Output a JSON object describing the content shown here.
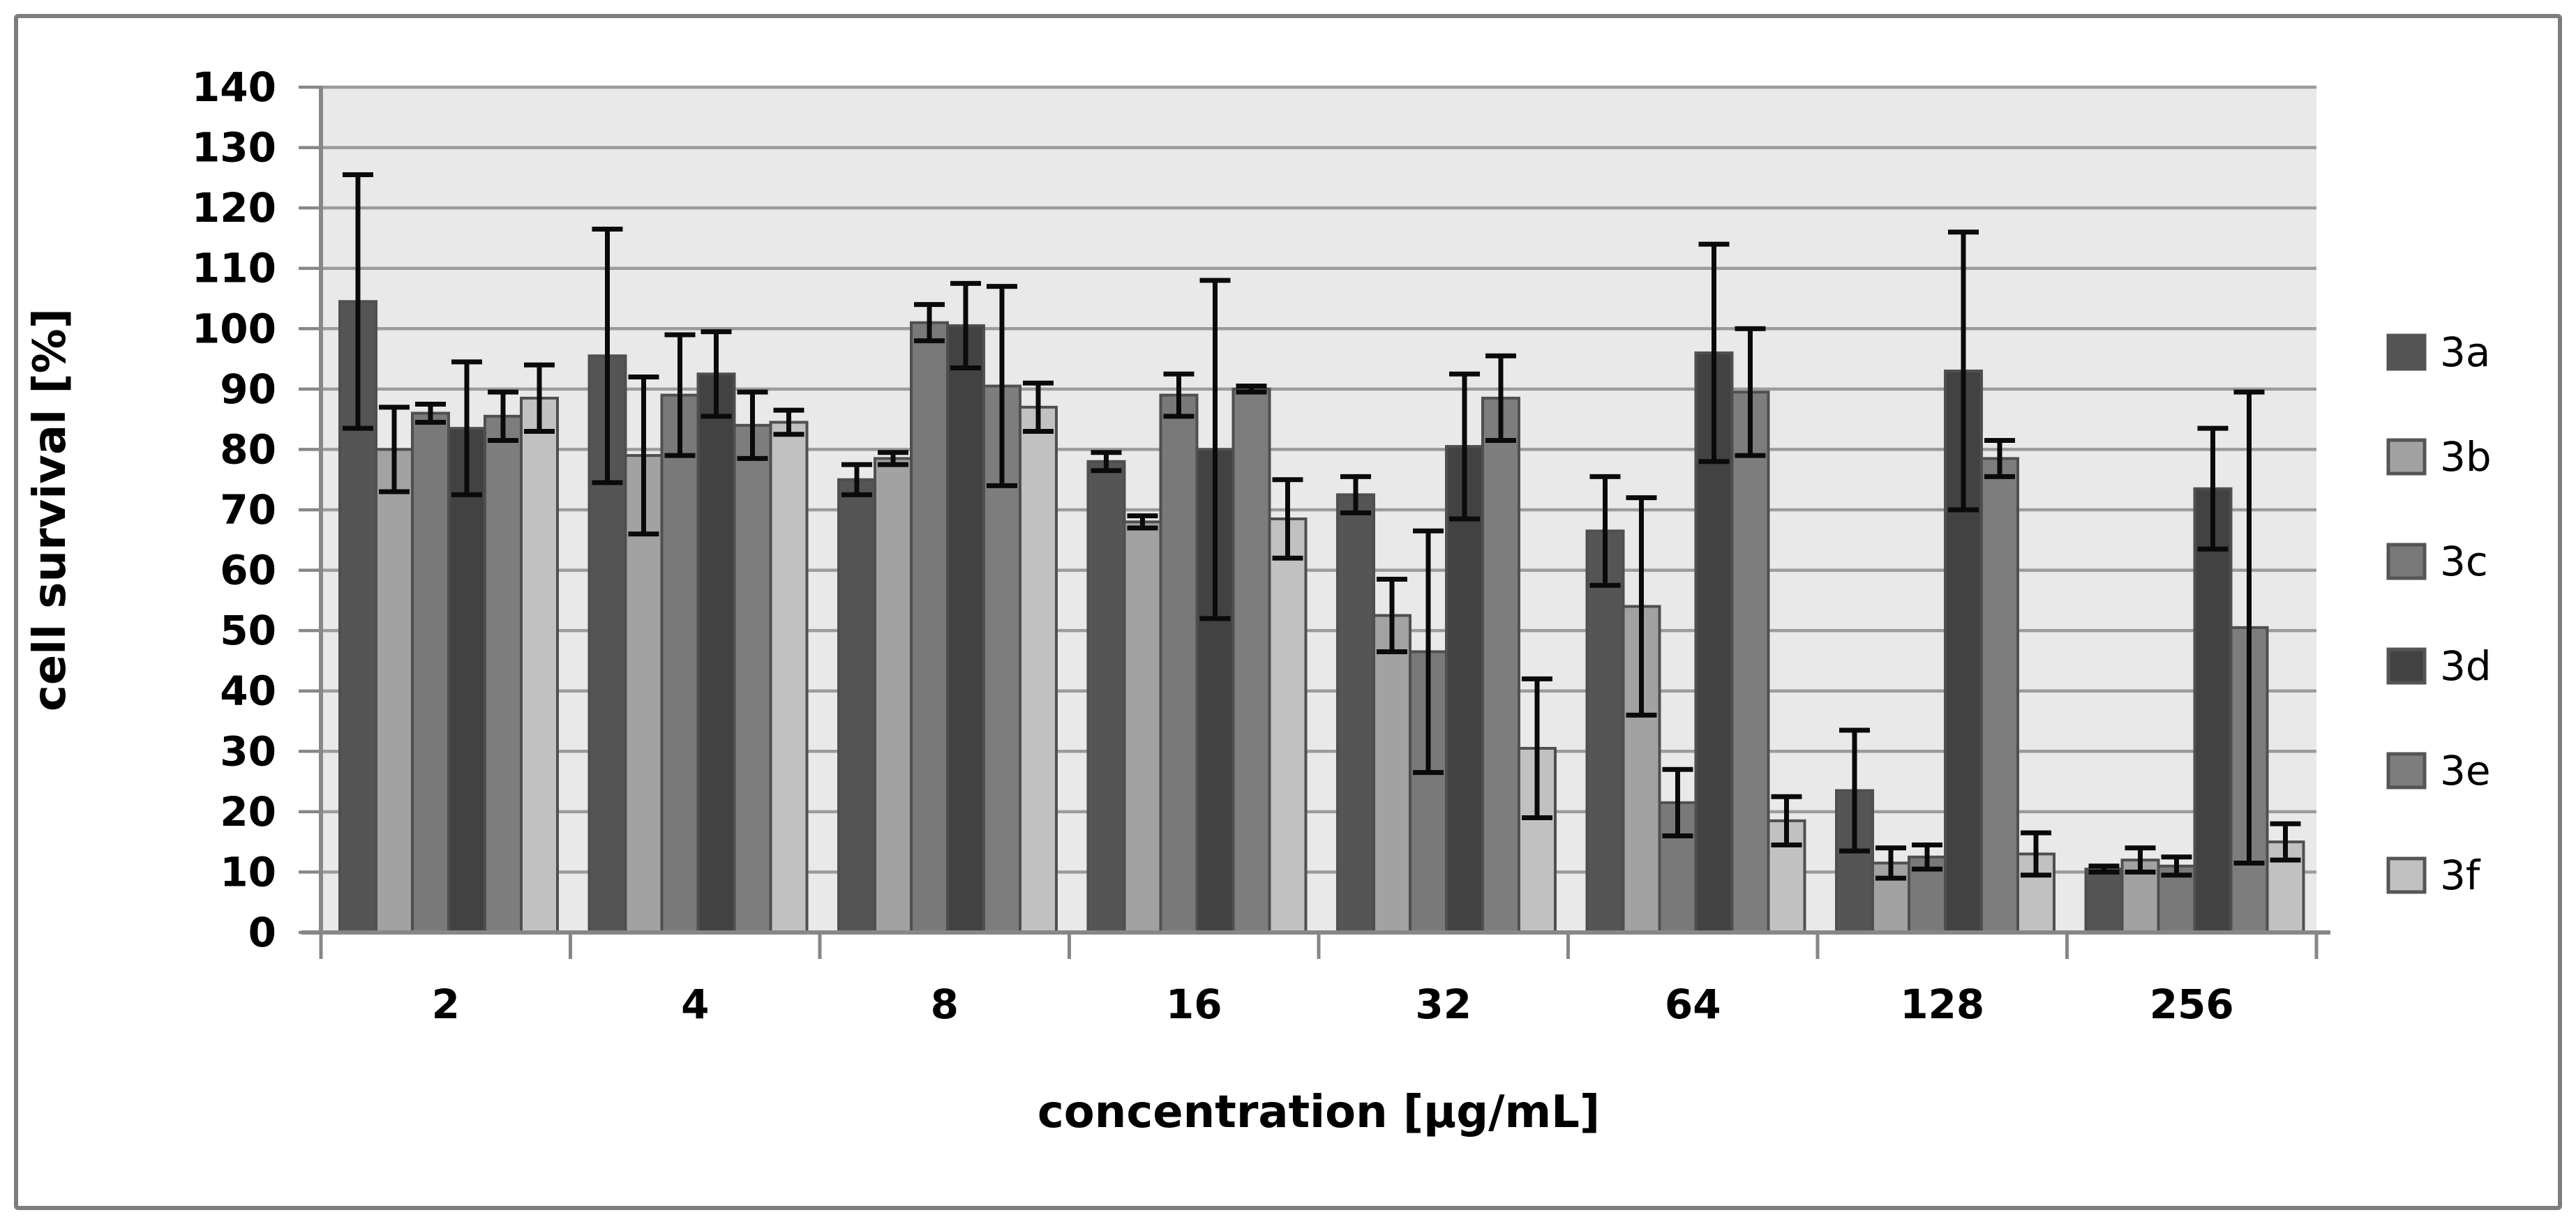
{
  "figure": {
    "x_axis_title": "concentration [μg/mL]",
    "y_axis_title": "cell survival [%]"
  },
  "chart_data": {
    "type": "bar",
    "title": "",
    "xlabel": "concentration [μg/mL]",
    "ylabel": "cell survival [%]",
    "ylim": [
      0,
      140
    ],
    "ytick_step": 10,
    "yticks": [
      0,
      10,
      20,
      30,
      40,
      50,
      60,
      70,
      80,
      90,
      100,
      110,
      120,
      130,
      140
    ],
    "ytick_labels": [
      "0",
      "10",
      "20",
      "30",
      "40",
      "50",
      "60",
      "70",
      "80",
      "90",
      "100",
      "110",
      "120",
      "130",
      "140"
    ],
    "categories": [
      "2",
      "4",
      "8",
      "16",
      "32",
      "64",
      "128",
      "256"
    ],
    "grid": true,
    "legend_position": "right",
    "plot_bg_color": "#E9E9E9",
    "gridline_color": "#9B9B9B",
    "axis_color": "#878787",
    "error_bar_color": "#0A0A0A",
    "bar_border_color": "#4F4F4F",
    "series": [
      {
        "name": "3a",
        "color": "#555555",
        "values": [
          104.5,
          95.5,
          75,
          78,
          72.5,
          66.5,
          23.5,
          10.5
        ],
        "errors": [
          21,
          21,
          2.5,
          1.5,
          3,
          9,
          10,
          0.5
        ]
      },
      {
        "name": "3b",
        "color": "#A2A2A2",
        "values": [
          80,
          79,
          78.5,
          68,
          52.5,
          54,
          11.5,
          12
        ],
        "errors": [
          7,
          13,
          1,
          1,
          6,
          18,
          2.5,
          2
        ]
      },
      {
        "name": "3c",
        "color": "#797979",
        "values": [
          86,
          89,
          101,
          89,
          46.5,
          21.5,
          12.5,
          11
        ],
        "errors": [
          1.5,
          10,
          3,
          3.5,
          20,
          5.5,
          2,
          1.5
        ]
      },
      {
        "name": "3d",
        "color": "#424242",
        "values": [
          83.5,
          92.5,
          100.5,
          80,
          80.5,
          96,
          93,
          73.5
        ],
        "errors": [
          11,
          7,
          7,
          28,
          12,
          18,
          23,
          10
        ]
      },
      {
        "name": "3e",
        "color": "#7D7D7D",
        "values": [
          85.5,
          84,
          90.5,
          90,
          88.5,
          89.5,
          78.5,
          50.5
        ],
        "errors": [
          4,
          5.5,
          16.5,
          0.5,
          7,
          10.5,
          3,
          39
        ]
      },
      {
        "name": "3f",
        "color": "#C1C1C1",
        "values": [
          88.5,
          84.5,
          87,
          68.5,
          30.5,
          18.5,
          13,
          15
        ],
        "errors": [
          5.5,
          2,
          4,
          6.5,
          11.5,
          4,
          3.5,
          3
        ]
      }
    ]
  }
}
